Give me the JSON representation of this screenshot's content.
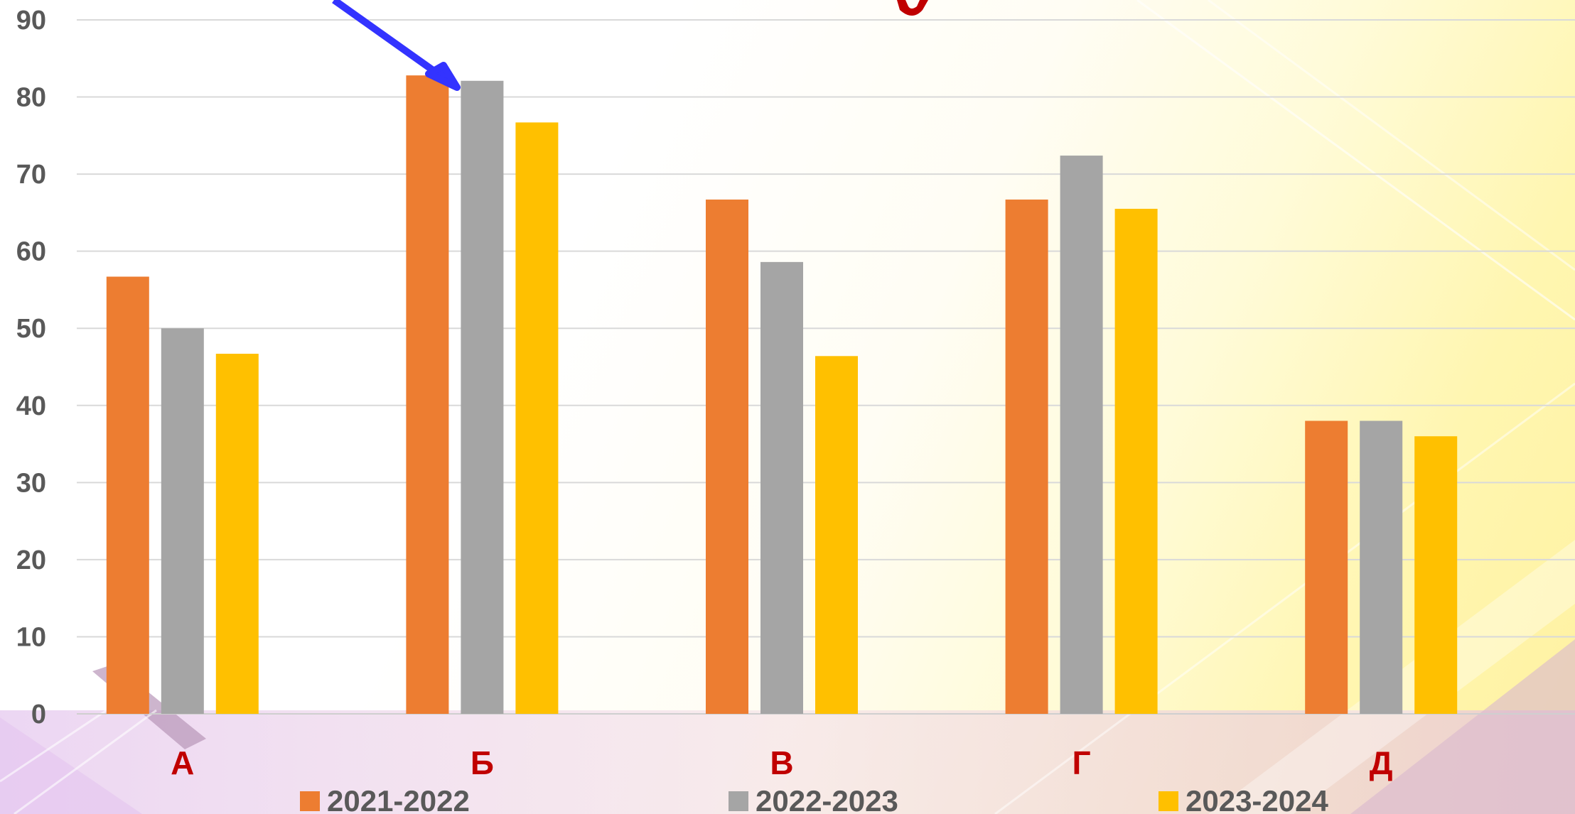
{
  "chart_data": {
    "type": "bar",
    "categories": [
      "А",
      "Б",
      "В",
      "Г",
      "Д"
    ],
    "series": [
      {
        "name": "2021-2022",
        "color": "#ED7D31",
        "values": [
          56.7,
          82.8,
          66.7,
          66.7,
          38.0
        ]
      },
      {
        "name": "2022-2023",
        "color": "#A5A5A5",
        "values": [
          50.0,
          82.1,
          58.6,
          72.4,
          38.0
        ]
      },
      {
        "name": "2023-2024",
        "color": "#FFC000",
        "values": [
          46.7,
          76.7,
          46.4,
          65.5,
          36.0
        ]
      }
    ],
    "ylim": [
      0,
      90
    ],
    "yticks": [
      0,
      10,
      20,
      30,
      40,
      50,
      60,
      70,
      80,
      90
    ],
    "grid": true,
    "legend_position": "bottom",
    "title": "",
    "xlabel": "",
    "ylabel": "",
    "annotation": "arrow pointing to category Б",
    "colors": {
      "axis_text": "#595959",
      "category_text": "#C00000",
      "grid": "#D9D9D9",
      "arrow": "#3333FF",
      "title_fragment": "#C00000"
    }
  }
}
